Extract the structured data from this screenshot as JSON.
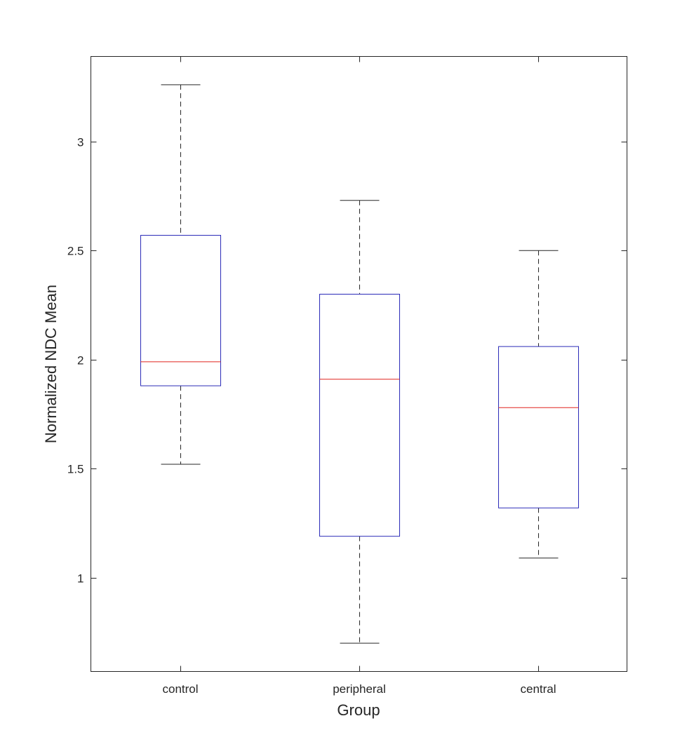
{
  "chart_data": {
    "type": "boxplot",
    "title": "",
    "xlabel": "Group",
    "ylabel": "Normalized NDC Mean",
    "ylim": [
      0.57,
      3.39
    ],
    "yticks": [
      {
        "value": 1,
        "label": "1"
      },
      {
        "value": 1.5,
        "label": "1.5"
      },
      {
        "value": 2,
        "label": "2"
      },
      {
        "value": 2.5,
        "label": "2.5"
      },
      {
        "value": 3,
        "label": "3"
      }
    ],
    "categories": [
      "control",
      "peripheral",
      "central"
    ],
    "boxes": [
      {
        "group": "control",
        "whisker_low": 1.52,
        "q1": 1.88,
        "median": 1.99,
        "q3": 2.57,
        "whisker_high": 3.26
      },
      {
        "group": "peripheral",
        "whisker_low": 0.7,
        "q1": 1.19,
        "median": 1.91,
        "q3": 2.3,
        "whisker_high": 2.73
      },
      {
        "group": "central",
        "whisker_low": 1.09,
        "q1": 1.32,
        "median": 1.78,
        "q3": 2.06,
        "whisker_high": 2.5
      }
    ],
    "colors": {
      "box": "#2b2bb8",
      "median": "#e0241f",
      "whisker": "#262626",
      "axis": "#262626"
    },
    "grid": false
  }
}
